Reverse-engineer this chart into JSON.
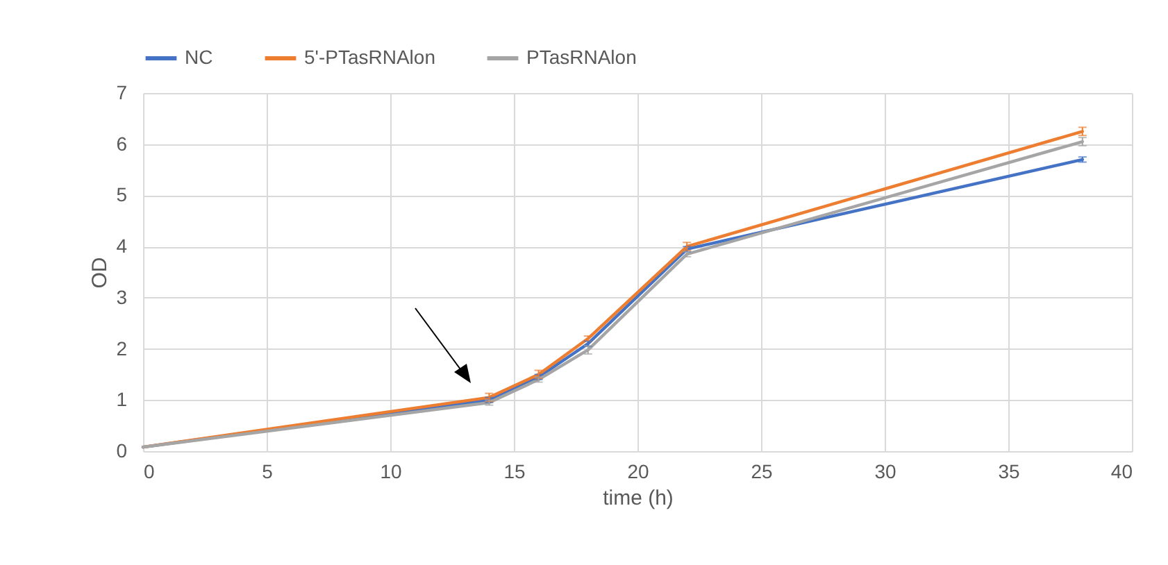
{
  "chart_data": {
    "type": "line",
    "xlabel": "time (h)",
    "ylabel": "OD",
    "x": [
      0,
      14,
      16,
      18,
      22,
      38
    ],
    "series": [
      {
        "name": "NC",
        "color": "#4472c4",
        "values": [
          0.08,
          1.0,
          1.45,
          2.1,
          3.95,
          5.7
        ],
        "errors": [
          null,
          0.05,
          0.05,
          0.05,
          0.05,
          0.05
        ]
      },
      {
        "name": "5'-PTasRNAlon",
        "color": "#ed7d31",
        "values": [
          0.08,
          1.05,
          1.5,
          2.2,
          4.0,
          6.25
        ],
        "errors": [
          null,
          0.08,
          0.08,
          0.05,
          0.08,
          0.08
        ]
      },
      {
        "name": "PTasRNAlon",
        "color": "#a5a5a5",
        "values": [
          0.08,
          0.95,
          1.4,
          1.98,
          3.85,
          6.05
        ],
        "errors": [
          null,
          0.05,
          0.05,
          0.08,
          0.05,
          0.08
        ]
      }
    ],
    "xlim": [
      0,
      40
    ],
    "xticks": [
      0,
      5,
      10,
      15,
      20,
      25,
      30,
      35,
      40
    ],
    "ylim": [
      0,
      7
    ],
    "yticks": [
      0,
      1,
      2,
      3,
      4,
      5,
      6,
      7
    ],
    "grid": true,
    "legend": "top",
    "marker": "none",
    "line_style": "solid"
  }
}
